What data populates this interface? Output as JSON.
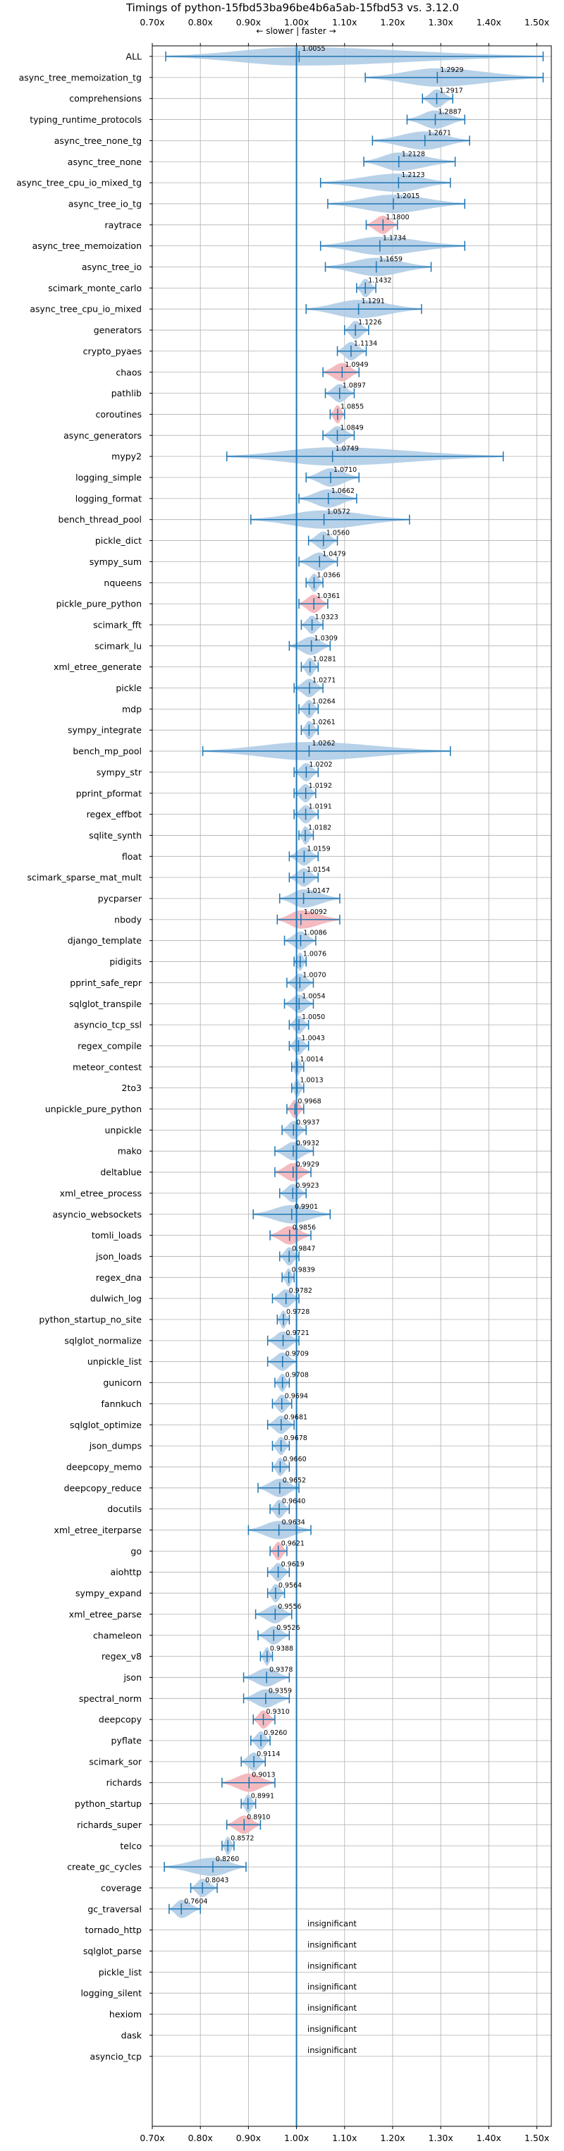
{
  "chart_data": {
    "type": "violin",
    "title": "Timings of python-15fbd53ba96be4b6a5ab-15fbd53 vs. 3.12.0",
    "direction_annotation": "← slower | faster →",
    "xlim": [
      0.7,
      1.53
    ],
    "xticks": [
      {
        "value": 0.7,
        "label": "0.70x"
      },
      {
        "value": 0.8,
        "label": "0.80x"
      },
      {
        "value": 0.9,
        "label": "0.90x"
      },
      {
        "value": 1.0,
        "label": "1.00x"
      },
      {
        "value": 1.1,
        "label": "1.10x"
      },
      {
        "value": 1.2,
        "label": "1.20x"
      },
      {
        "value": 1.3,
        "label": "1.30x"
      },
      {
        "value": 1.4,
        "label": "1.40x"
      },
      {
        "value": 1.5,
        "label": "1.50x"
      }
    ],
    "grid": true,
    "colors": {
      "faster": "#aac9e4",
      "slower": "#f2aeb4",
      "line": "#1f77b4",
      "grid": "#b0b0b0"
    },
    "insignificant_label": "insignificant",
    "benchmarks": [
      {
        "name": "ALL",
        "median": 1.0055,
        "min": 0.728,
        "max": 1.513,
        "color": "blue"
      },
      {
        "name": "async_tree_memoization_tg",
        "median": 1.2929,
        "min": 1.143,
        "max": 1.513,
        "color": "blue"
      },
      {
        "name": "comprehensions",
        "median": 1.2917,
        "min": 1.262,
        "max": 1.325,
        "color": "blue"
      },
      {
        "name": "typing_runtime_protocols",
        "median": 1.2887,
        "min": 1.23,
        "max": 1.35,
        "color": "blue"
      },
      {
        "name": "async_tree_none_tg",
        "median": 1.2671,
        "min": 1.158,
        "max": 1.36,
        "color": "blue"
      },
      {
        "name": "async_tree_none",
        "median": 1.2128,
        "min": 1.14,
        "max": 1.33,
        "color": "blue"
      },
      {
        "name": "async_tree_cpu_io_mixed_tg",
        "median": 1.2123,
        "min": 1.05,
        "max": 1.32,
        "color": "blue"
      },
      {
        "name": "async_tree_io_tg",
        "median": 1.2015,
        "min": 1.065,
        "max": 1.35,
        "color": "blue"
      },
      {
        "name": "raytrace",
        "median": 1.18,
        "min": 1.145,
        "max": 1.21,
        "color": "red"
      },
      {
        "name": "async_tree_memoization",
        "median": 1.1734,
        "min": 1.05,
        "max": 1.35,
        "color": "blue"
      },
      {
        "name": "async_tree_io",
        "median": 1.1659,
        "min": 1.06,
        "max": 1.28,
        "color": "blue"
      },
      {
        "name": "scimark_monte_carlo",
        "median": 1.1432,
        "min": 1.125,
        "max": 1.165,
        "color": "blue"
      },
      {
        "name": "async_tree_cpu_io_mixed",
        "median": 1.1291,
        "min": 1.02,
        "max": 1.26,
        "color": "blue"
      },
      {
        "name": "generators",
        "median": 1.1226,
        "min": 1.1,
        "max": 1.15,
        "color": "blue"
      },
      {
        "name": "crypto_pyaes",
        "median": 1.1134,
        "min": 1.085,
        "max": 1.145,
        "color": "blue"
      },
      {
        "name": "chaos",
        "median": 1.0949,
        "min": 1.055,
        "max": 1.13,
        "color": "red"
      },
      {
        "name": "pathlib",
        "median": 1.0897,
        "min": 1.06,
        "max": 1.12,
        "color": "blue"
      },
      {
        "name": "coroutines",
        "median": 1.0855,
        "min": 1.07,
        "max": 1.1,
        "color": "red"
      },
      {
        "name": "async_generators",
        "median": 1.0849,
        "min": 1.055,
        "max": 1.12,
        "color": "blue"
      },
      {
        "name": "mypy2",
        "median": 1.0749,
        "min": 0.855,
        "max": 1.43,
        "color": "blue"
      },
      {
        "name": "logging_simple",
        "median": 1.071,
        "min": 1.02,
        "max": 1.13,
        "color": "blue"
      },
      {
        "name": "logging_format",
        "median": 1.0662,
        "min": 1.005,
        "max": 1.125,
        "color": "blue"
      },
      {
        "name": "bench_thread_pool",
        "median": 1.0572,
        "min": 0.905,
        "max": 1.235,
        "color": "blue"
      },
      {
        "name": "pickle_dict",
        "median": 1.056,
        "min": 1.025,
        "max": 1.085,
        "color": "blue"
      },
      {
        "name": "sympy_sum",
        "median": 1.0479,
        "min": 1.005,
        "max": 1.085,
        "color": "blue"
      },
      {
        "name": "nqueens",
        "median": 1.0366,
        "min": 1.02,
        "max": 1.055,
        "color": "blue"
      },
      {
        "name": "pickle_pure_python",
        "median": 1.0361,
        "min": 1.005,
        "max": 1.065,
        "color": "red"
      },
      {
        "name": "scimark_fft",
        "median": 1.0323,
        "min": 1.01,
        "max": 1.055,
        "color": "blue"
      },
      {
        "name": "scimark_lu",
        "median": 1.0309,
        "min": 0.985,
        "max": 1.07,
        "color": "blue"
      },
      {
        "name": "xml_etree_generate",
        "median": 1.0281,
        "min": 1.01,
        "max": 1.045,
        "color": "blue"
      },
      {
        "name": "pickle",
        "median": 1.0271,
        "min": 0.995,
        "max": 1.055,
        "color": "blue"
      },
      {
        "name": "mdp",
        "median": 1.0264,
        "min": 1.005,
        "max": 1.045,
        "color": "blue"
      },
      {
        "name": "sympy_integrate",
        "median": 1.0261,
        "min": 1.01,
        "max": 1.045,
        "color": "blue"
      },
      {
        "name": "bench_mp_pool",
        "median": 1.0262,
        "min": 0.805,
        "max": 1.32,
        "color": "blue"
      },
      {
        "name": "sympy_str",
        "median": 1.0202,
        "min": 0.995,
        "max": 1.045,
        "color": "blue"
      },
      {
        "name": "pprint_pformat",
        "median": 1.0192,
        "min": 0.995,
        "max": 1.04,
        "color": "blue"
      },
      {
        "name": "regex_effbot",
        "median": 1.0191,
        "min": 0.995,
        "max": 1.045,
        "color": "blue"
      },
      {
        "name": "sqlite_synth",
        "median": 1.0182,
        "min": 1.005,
        "max": 1.035,
        "color": "blue"
      },
      {
        "name": "float",
        "median": 1.0159,
        "min": 0.985,
        "max": 1.045,
        "color": "blue"
      },
      {
        "name": "scimark_sparse_mat_mult",
        "median": 1.0154,
        "min": 0.985,
        "max": 1.045,
        "color": "blue"
      },
      {
        "name": "pycparser",
        "median": 1.0147,
        "min": 0.965,
        "max": 1.09,
        "color": "blue"
      },
      {
        "name": "nbody",
        "median": 1.0092,
        "min": 0.96,
        "max": 1.09,
        "color": "red"
      },
      {
        "name": "django_template",
        "median": 1.0086,
        "min": 0.975,
        "max": 1.04,
        "color": "blue"
      },
      {
        "name": "pidigits",
        "median": 1.0076,
        "min": 0.995,
        "max": 1.02,
        "color": "blue"
      },
      {
        "name": "pprint_safe_repr",
        "median": 1.007,
        "min": 0.98,
        "max": 1.035,
        "color": "blue"
      },
      {
        "name": "sqlglot_transpile",
        "median": 1.0054,
        "min": 0.975,
        "max": 1.035,
        "color": "blue"
      },
      {
        "name": "asyncio_tcp_ssl",
        "median": 1.005,
        "min": 0.985,
        "max": 1.025,
        "color": "blue"
      },
      {
        "name": "regex_compile",
        "median": 1.0043,
        "min": 0.985,
        "max": 1.025,
        "color": "blue"
      },
      {
        "name": "meteor_contest",
        "median": 1.0014,
        "min": 0.99,
        "max": 1.015,
        "color": "blue"
      },
      {
        "name": "2to3",
        "median": 1.0013,
        "min": 0.99,
        "max": 1.015,
        "color": "blue"
      },
      {
        "name": "unpickle_pure_python",
        "median": 0.9968,
        "min": 0.98,
        "max": 1.015,
        "color": "red"
      },
      {
        "name": "unpickle",
        "median": 0.9937,
        "min": 0.97,
        "max": 1.02,
        "color": "blue"
      },
      {
        "name": "mako",
        "median": 0.9932,
        "min": 0.955,
        "max": 1.035,
        "color": "blue"
      },
      {
        "name": "deltablue",
        "median": 0.9929,
        "min": 0.955,
        "max": 1.03,
        "color": "red"
      },
      {
        "name": "xml_etree_process",
        "median": 0.9923,
        "min": 0.965,
        "max": 1.02,
        "color": "blue"
      },
      {
        "name": "asyncio_websockets",
        "median": 0.9901,
        "min": 0.91,
        "max": 1.07,
        "color": "blue"
      },
      {
        "name": "tomli_loads",
        "median": 0.9856,
        "min": 0.945,
        "max": 1.03,
        "color": "red"
      },
      {
        "name": "json_loads",
        "median": 0.9847,
        "min": 0.965,
        "max": 1.005,
        "color": "blue"
      },
      {
        "name": "regex_dna",
        "median": 0.9839,
        "min": 0.97,
        "max": 0.995,
        "color": "blue"
      },
      {
        "name": "dulwich_log",
        "median": 0.9782,
        "min": 0.95,
        "max": 1.005,
        "color": "blue"
      },
      {
        "name": "python_startup_no_site",
        "median": 0.9728,
        "min": 0.96,
        "max": 0.985,
        "color": "blue"
      },
      {
        "name": "sqlglot_normalize",
        "median": 0.9721,
        "min": 0.94,
        "max": 1.005,
        "color": "blue"
      },
      {
        "name": "unpickle_list",
        "median": 0.9709,
        "min": 0.94,
        "max": 1.0,
        "color": "blue"
      },
      {
        "name": "gunicorn",
        "median": 0.9708,
        "min": 0.955,
        "max": 0.985,
        "color": "blue"
      },
      {
        "name": "fannkuch",
        "median": 0.9694,
        "min": 0.95,
        "max": 0.99,
        "color": "blue"
      },
      {
        "name": "sqlglot_optimize",
        "median": 0.9681,
        "min": 0.94,
        "max": 0.995,
        "color": "blue"
      },
      {
        "name": "json_dumps",
        "median": 0.9678,
        "min": 0.95,
        "max": 0.985,
        "color": "blue"
      },
      {
        "name": "deepcopy_memo",
        "median": 0.966,
        "min": 0.95,
        "max": 0.985,
        "color": "blue"
      },
      {
        "name": "deepcopy_reduce",
        "median": 0.9652,
        "min": 0.92,
        "max": 1.005,
        "color": "blue"
      },
      {
        "name": "docutils",
        "median": 0.964,
        "min": 0.945,
        "max": 0.985,
        "color": "blue"
      },
      {
        "name": "xml_etree_iterparse",
        "median": 0.9634,
        "min": 0.9,
        "max": 1.03,
        "color": "blue"
      },
      {
        "name": "go",
        "median": 0.9621,
        "min": 0.945,
        "max": 0.98,
        "color": "red"
      },
      {
        "name": "aiohttp",
        "median": 0.9619,
        "min": 0.94,
        "max": 0.985,
        "color": "blue"
      },
      {
        "name": "sympy_expand",
        "median": 0.9564,
        "min": 0.94,
        "max": 0.975,
        "color": "blue"
      },
      {
        "name": "xml_etree_parse",
        "median": 0.9556,
        "min": 0.915,
        "max": 0.99,
        "color": "blue"
      },
      {
        "name": "chameleon",
        "median": 0.9526,
        "min": 0.92,
        "max": 0.985,
        "color": "blue"
      },
      {
        "name": "regex_v8",
        "median": 0.9388,
        "min": 0.925,
        "max": 0.95,
        "color": "blue"
      },
      {
        "name": "json",
        "median": 0.9378,
        "min": 0.89,
        "max": 0.985,
        "color": "blue"
      },
      {
        "name": "spectral_norm",
        "median": 0.9359,
        "min": 0.89,
        "max": 0.985,
        "color": "blue"
      },
      {
        "name": "deepcopy",
        "median": 0.931,
        "min": 0.91,
        "max": 0.955,
        "color": "red"
      },
      {
        "name": "pyflate",
        "median": 0.926,
        "min": 0.905,
        "max": 0.945,
        "color": "blue"
      },
      {
        "name": "scimark_sor",
        "median": 0.9114,
        "min": 0.885,
        "max": 0.935,
        "color": "blue"
      },
      {
        "name": "richards",
        "median": 0.9013,
        "min": 0.845,
        "max": 0.955,
        "color": "red"
      },
      {
        "name": "python_startup",
        "median": 0.8991,
        "min": 0.885,
        "max": 0.915,
        "color": "blue"
      },
      {
        "name": "richards_super",
        "median": 0.891,
        "min": 0.855,
        "max": 0.925,
        "color": "red"
      },
      {
        "name": "telco",
        "median": 0.8572,
        "min": 0.845,
        "max": 0.87,
        "color": "blue"
      },
      {
        "name": "create_gc_cycles",
        "median": 0.826,
        "min": 0.725,
        "max": 0.895,
        "color": "blue"
      },
      {
        "name": "coverage",
        "median": 0.8043,
        "min": 0.78,
        "max": 0.835,
        "color": "blue"
      },
      {
        "name": "gc_traversal",
        "median": 0.7604,
        "min": 0.735,
        "max": 0.8,
        "color": "blue"
      },
      {
        "name": "tornado_http",
        "insignificant": true
      },
      {
        "name": "sqlglot_parse",
        "insignificant": true
      },
      {
        "name": "pickle_list",
        "insignificant": true
      },
      {
        "name": "logging_silent",
        "insignificant": true
      },
      {
        "name": "hexiom",
        "insignificant": true
      },
      {
        "name": "dask",
        "insignificant": true
      },
      {
        "name": "asyncio_tcp",
        "insignificant": true
      }
    ]
  }
}
